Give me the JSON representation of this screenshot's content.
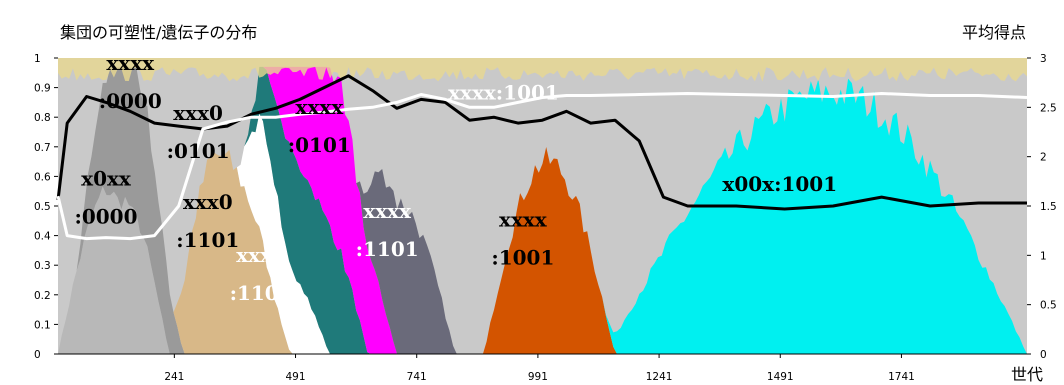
{
  "chart_data": {
    "type": "area",
    "title": "集団の可塑性/遺伝子の分布",
    "y2label": "平均得点",
    "xlabel": "世代",
    "xlim": [
      1,
      2000
    ],
    "ylim": [
      0,
      1
    ],
    "y2lim": [
      0,
      3
    ],
    "x_ticks": [
      "241",
      "491",
      "741",
      "991",
      "1241",
      "1491",
      "1741"
    ],
    "x_tick_values": [
      241,
      491,
      741,
      991,
      1241,
      1491,
      1741
    ],
    "y_ticks": [
      "0",
      "0.1",
      "0.2",
      "0.3",
      "0.4",
      "0.5",
      "0.6",
      "0.7",
      "0.8",
      "0.9",
      "1"
    ],
    "y2_ticks": [
      "0",
      "0.5",
      "1",
      "1.5",
      "2",
      "2.5",
      "3"
    ],
    "bands": [
      {
        "genotype": "xxxx:0000",
        "color": "#b8b8b8",
        "start": 1,
        "peak": 120,
        "end": 230,
        "max_share": 0.62
      },
      {
        "genotype": "x0xx:0000",
        "color": "#9a9a9a",
        "start": 40,
        "peak": 150,
        "end": 260,
        "max_share": 0.55
      },
      {
        "genotype": "xxx0:0101",
        "color": "#d8b888",
        "start": 240,
        "peak": 330,
        "end": 480,
        "max_share": 0.72
      },
      {
        "genotype": "xxx0:1101",
        "color": "#ffffff",
        "start": 370,
        "peak": 440,
        "end": 560,
        "max_share": 0.45
      },
      {
        "genotype": "xxx0:1100",
        "color": "#1f7a7a",
        "start": 390,
        "peak": 520,
        "end": 640,
        "max_share": 0.55
      },
      {
        "genotype": "xxxx:0101",
        "color": "#ff00ff",
        "start": 430,
        "peak": 560,
        "end": 700,
        "max_share": 0.6
      },
      {
        "genotype": "xxxx:1101",
        "color": "#6a6a7a",
        "start": 620,
        "peak": 700,
        "end": 820,
        "max_share": 0.55
      },
      {
        "genotype": "xxxx:1001",
        "color": "#d35400",
        "start": 880,
        "peak": 1010,
        "end": 1150,
        "max_share": 0.7
      },
      {
        "genotype": "x00x:1001",
        "color": "#00f0f0",
        "start": 1130,
        "peak": 1600,
        "end": 2000,
        "max_share": 0.95
      }
    ],
    "series": [
      {
        "color": "#000000",
        "axis": "left",
        "x": [
          1,
          20,
          60,
          100,
          150,
          200,
          250,
          300,
          350,
          400,
          450,
          500,
          550,
          600,
          650,
          700,
          750,
          800,
          850,
          900,
          950,
          1000,
          1050,
          1100,
          1150,
          1200,
          1250,
          1300,
          1400,
          1500,
          1600,
          1700,
          1800,
          1900,
          2000
        ],
        "values": [
          0.52,
          0.78,
          0.87,
          0.85,
          0.82,
          0.78,
          0.77,
          0.76,
          0.77,
          0.81,
          0.83,
          0.86,
          0.9,
          0.94,
          0.89,
          0.83,
          0.86,
          0.85,
          0.79,
          0.8,
          0.78,
          0.79,
          0.82,
          0.78,
          0.79,
          0.72,
          0.53,
          0.5,
          0.5,
          0.49,
          0.5,
          0.53,
          0.5,
          0.51,
          0.51
        ]
      },
      {
        "color": "#ffffff",
        "axis": "right",
        "x": [
          1,
          20,
          60,
          100,
          150,
          200,
          250,
          300,
          350,
          400,
          450,
          500,
          550,
          600,
          650,
          700,
          750,
          800,
          850,
          900,
          950,
          1000,
          1050,
          1100,
          1200,
          1300,
          1400,
          1500,
          1600,
          1700,
          1800,
          1900,
          2000
        ],
        "values": [
          1.6,
          1.2,
          1.17,
          1.18,
          1.17,
          1.2,
          1.5,
          2.28,
          2.35,
          2.4,
          2.4,
          2.43,
          2.45,
          2.48,
          2.5,
          2.55,
          2.63,
          2.58,
          2.5,
          2.5,
          2.55,
          2.6,
          2.62,
          2.62,
          2.63,
          2.64,
          2.63,
          2.62,
          2.61,
          2.64,
          2.62,
          2.62,
          2.6
        ]
      }
    ],
    "annotations": [
      {
        "line1": "xxxx",
        "line2": ":0000",
        "color": "#000000",
        "x": 150,
        "y": 0.96
      },
      {
        "line1": "x0xx",
        "line2": ":0000",
        "color": "#000000",
        "x": 100,
        "y": 0.57
      },
      {
        "line1": "xxx0",
        "line2": ":0101",
        "color": "#000000",
        "x": 290,
        "y": 0.79
      },
      {
        "line1": "xxx0",
        "line2": ":1101",
        "color": "#000000",
        "x": 310,
        "y": 0.49
      },
      {
        "line1": "xxx0",
        "line2": ":1100",
        "color": "#ffffff",
        "x": 420,
        "y": 0.31
      },
      {
        "line1": "xxxx",
        "line2": ":0101",
        "color": "#000000",
        "x": 540,
        "y": 0.81
      },
      {
        "line1": "xxxx",
        "line2": ":1101",
        "color": "#ffffff",
        "x": 680,
        "y": 0.46
      },
      {
        "line1": "xxxx",
        "line2": ":1001",
        "color": "#000000",
        "x": 960,
        "y": 0.43
      },
      {
        "line1": "xxxx:1001",
        "line2": "",
        "color": "#ffffff",
        "x": 920,
        "y": 0.86
      },
      {
        "line1": "x00x:1001",
        "line2": "",
        "color": "#000000",
        "x": 1490,
        "y": 0.55
      }
    ]
  }
}
